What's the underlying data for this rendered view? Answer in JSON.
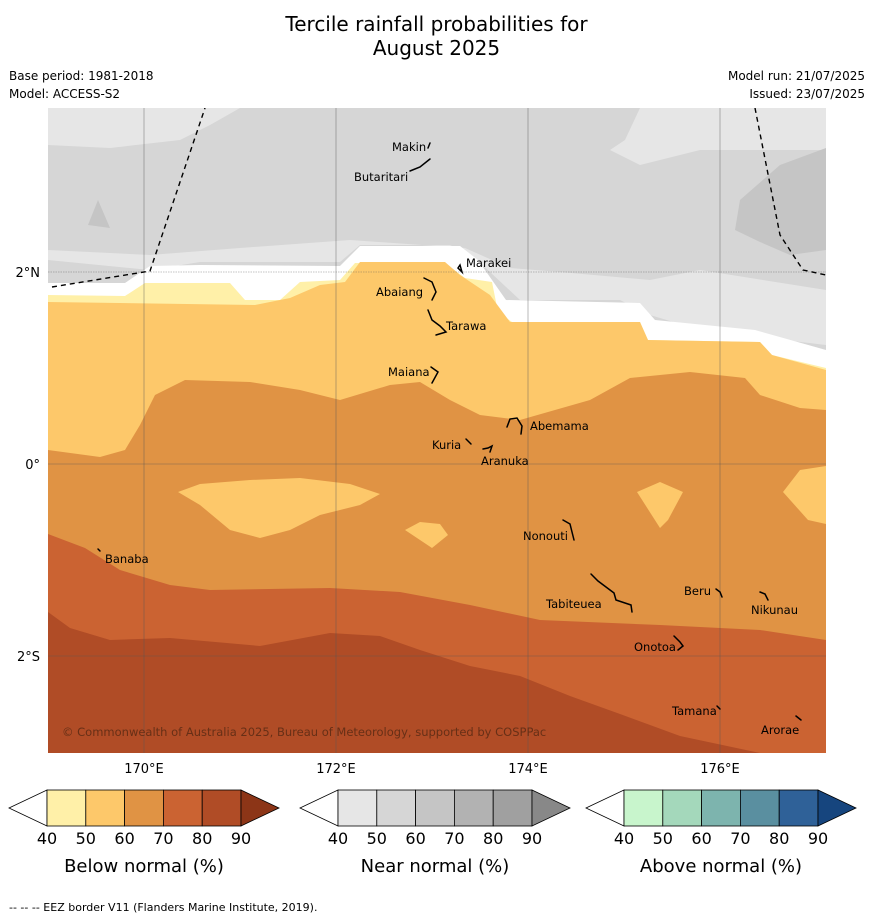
{
  "title_line1": "Tercile rainfall probabilities for",
  "title_line2": "August 2025",
  "meta": {
    "base_period": "Base period: 1981-2018",
    "model": "Model: ACCESS-S2",
    "model_run": "Model run: 21/07/2025",
    "issued": "Issued: 23/07/2025"
  },
  "axes": {
    "lat_labels": [
      "2°N",
      "0°",
      "2°S"
    ],
    "lon_labels": [
      "170°E",
      "172°E",
      "174°E",
      "176°E"
    ]
  },
  "places": [
    {
      "id": "makin",
      "name": "Makin"
    },
    {
      "id": "butaritari",
      "name": "Butaritari"
    },
    {
      "id": "marakei",
      "name": "Marakei"
    },
    {
      "id": "abaiang",
      "name": "Abaiang"
    },
    {
      "id": "tarawa",
      "name": "Tarawa"
    },
    {
      "id": "maiana",
      "name": "Maiana"
    },
    {
      "id": "abemama",
      "name": "Abemama"
    },
    {
      "id": "kuria",
      "name": "Kuria"
    },
    {
      "id": "aranuka",
      "name": "Aranuka"
    },
    {
      "id": "nonouti",
      "name": "Nonouti"
    },
    {
      "id": "banaba",
      "name": "Banaba"
    },
    {
      "id": "beru",
      "name": "Beru"
    },
    {
      "id": "tabiteuea",
      "name": "Tabiteuea"
    },
    {
      "id": "nikunau",
      "name": "Nikunau"
    },
    {
      "id": "onotoa",
      "name": "Onotoa"
    },
    {
      "id": "tamana",
      "name": "Tamana"
    },
    {
      "id": "arorae",
      "name": "Arorae"
    }
  ],
  "copyright": "© Commonwealth of Australia 2025, Bureau of Meteorology, supported by COSPPac",
  "colorbars": [
    {
      "id": "below",
      "title": "Below normal (%)",
      "ticks": [
        "40",
        "50",
        "60",
        "70",
        "80",
        "90"
      ],
      "colors": [
        "#fff0a8",
        "#fdc86a",
        "#e09344",
        "#cb6332",
        "#b04c26",
        "#8c3517"
      ]
    },
    {
      "id": "near",
      "title": "Near normal (%)",
      "ticks": [
        "40",
        "50",
        "60",
        "70",
        "80",
        "90"
      ],
      "colors": [
        "#e6e6e6",
        "#d6d6d6",
        "#c5c5c5",
        "#b2b2b2",
        "#a0a0a0",
        "#888888"
      ]
    },
    {
      "id": "above",
      "title": "Above normal (%)",
      "ticks": [
        "40",
        "50",
        "60",
        "70",
        "80",
        "90"
      ],
      "colors": [
        "#c8f5cc",
        "#a4d8bb",
        "#7db4ae",
        "#5a8fa0",
        "#2f6198",
        "#16457e"
      ]
    }
  ],
  "footnote": "-- -- -- EEZ border V11 (Flanders Marine Institute, 2019).",
  "legend_colors": {
    "near_40_50": "#e6e6e6",
    "near_50_60": "#d6d6d6",
    "near_60_70": "#c5c5c5",
    "below_40_50": "#fff0a8",
    "below_50_60": "#fdc86a",
    "below_60_70": "#e09344",
    "below_70_80": "#cb6332",
    "below_80_90": "#b04c26"
  }
}
